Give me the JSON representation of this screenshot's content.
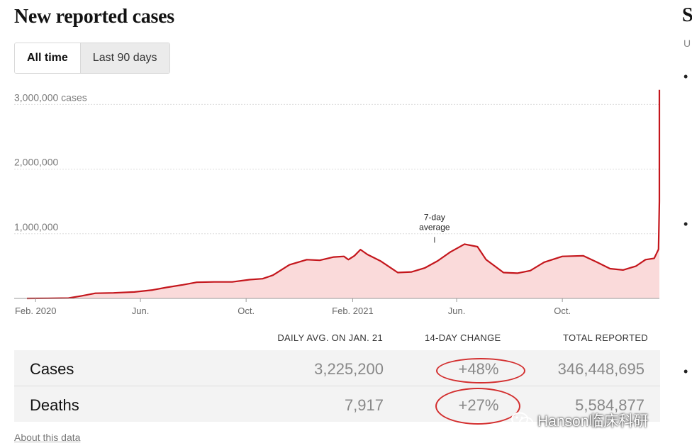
{
  "page": {
    "title": "New reported cases",
    "side_letter": "S",
    "side_sub": "U",
    "bullet": "•"
  },
  "toggle": {
    "active": "All time",
    "inactive": "Last 90 days"
  },
  "chart_data": {
    "type": "area",
    "title": "New reported cases",
    "ylabel": "cases",
    "y_ticks": [
      {
        "value": 3000000,
        "label": "3,000,000 cases"
      },
      {
        "value": 2000000,
        "label": "2,000,000"
      },
      {
        "value": 1000000,
        "label": "1,000,000"
      }
    ],
    "ylim": [
      0,
      3300000
    ],
    "x_ticks": [
      {
        "date": "2020-02-01",
        "label": "Feb. 2020"
      },
      {
        "date": "2020-06-01",
        "label": "Jun."
      },
      {
        "date": "2020-10-01",
        "label": "Oct."
      },
      {
        "date": "2021-02-01",
        "label": "Feb. 2021"
      },
      {
        "date": "2021-06-01",
        "label": "Jun."
      },
      {
        "date": "2021-10-01",
        "label": "Oct."
      }
    ],
    "xlim": [
      "2020-01-22",
      "2022-01-21"
    ],
    "annotation": {
      "date": "2021-04-25",
      "lines": [
        "7-day",
        "average"
      ]
    },
    "series": [
      {
        "name": "7-day average",
        "points": [
          [
            "2020-01-22",
            0
          ],
          [
            "2020-02-15",
            2000
          ],
          [
            "2020-03-10",
            5000
          ],
          [
            "2020-03-25",
            40000
          ],
          [
            "2020-04-10",
            80000
          ],
          [
            "2020-05-01",
            85000
          ],
          [
            "2020-05-25",
            100000
          ],
          [
            "2020-06-15",
            130000
          ],
          [
            "2020-07-01",
            170000
          ],
          [
            "2020-07-20",
            210000
          ],
          [
            "2020-08-05",
            250000
          ],
          [
            "2020-08-25",
            255000
          ],
          [
            "2020-09-15",
            255000
          ],
          [
            "2020-10-05",
            290000
          ],
          [
            "2020-10-20",
            305000
          ],
          [
            "2020-11-01",
            360000
          ],
          [
            "2020-11-20",
            520000
          ],
          [
            "2020-12-10",
            600000
          ],
          [
            "2020-12-25",
            590000
          ],
          [
            "2021-01-10",
            640000
          ],
          [
            "2021-01-22",
            650000
          ],
          [
            "2021-01-27",
            600000
          ],
          [
            "2021-02-03",
            660000
          ],
          [
            "2021-02-10",
            755000
          ],
          [
            "2021-02-18",
            680000
          ],
          [
            "2021-03-05",
            580000
          ],
          [
            "2021-03-25",
            400000
          ],
          [
            "2021-04-10",
            410000
          ],
          [
            "2021-04-25",
            470000
          ],
          [
            "2021-05-10",
            580000
          ],
          [
            "2021-05-25",
            720000
          ],
          [
            "2021-06-10",
            840000
          ],
          [
            "2021-06-25",
            800000
          ],
          [
            "2021-07-05",
            600000
          ],
          [
            "2021-07-25",
            400000
          ],
          [
            "2021-08-10",
            390000
          ],
          [
            "2021-08-25",
            430000
          ],
          [
            "2021-09-10",
            560000
          ],
          [
            "2021-10-01",
            650000
          ],
          [
            "2021-10-25",
            660000
          ],
          [
            "2021-11-10",
            560000
          ],
          [
            "2021-11-25",
            460000
          ],
          [
            "2021-12-10",
            440000
          ],
          [
            "2021-12-25",
            500000
          ],
          [
            "2022-01-05",
            600000
          ],
          [
            "2022-01-15",
            620000
          ],
          [
            "2022-01-20",
            760000
          ],
          [
            "2022-01-24",
            1500000
          ],
          [
            "2022-01-27",
            2300000
          ],
          [
            "2022-01-29",
            2800000
          ],
          [
            "2022-01-31",
            3000000
          ],
          [
            "2022-02-02",
            2950000
          ],
          [
            "2022-02-05",
            3225200
          ]
        ]
      }
    ]
  },
  "table": {
    "headers": {
      "avg": "DAILY AVG. ON JAN. 21",
      "change": "14-DAY CHANGE",
      "total": "TOTAL REPORTED"
    },
    "rows": [
      {
        "label": "Cases",
        "avg": "3,225,200",
        "change": "+48%",
        "total": "346,448,695"
      },
      {
        "label": "Deaths",
        "avg": "7,917",
        "change": "+27%",
        "total": "5,584,877"
      }
    ]
  },
  "footer": {
    "about_link": "About this data"
  },
  "watermark": {
    "text": "Hanson临床科研"
  },
  "colors": {
    "line": "#c4161c",
    "fill": "#fadada",
    "highlight": "#d32f2f"
  }
}
